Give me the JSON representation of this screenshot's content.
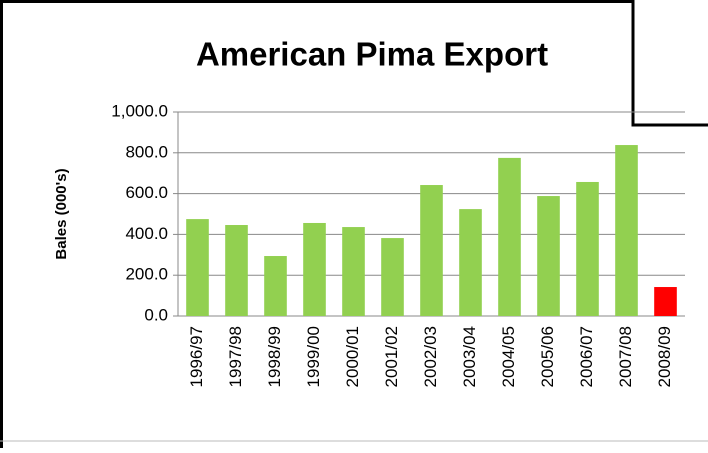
{
  "chart_data": {
    "type": "bar",
    "title": "American Pima Export",
    "y_axis_label": "Bales (000's)",
    "categories": [
      "1996/97",
      "1997/98",
      "1998/99",
      "1999/00",
      "2000/01",
      "2001/02",
      "2002/03",
      "2003/04",
      "2004/05",
      "2005/06",
      "2006/07",
      "2007/08",
      "2008/09"
    ],
    "values": [
      475,
      446,
      294,
      456,
      436,
      382,
      642,
      524,
      775,
      588,
      657,
      838,
      142
    ],
    "colors": [
      "#92d050",
      "#92d050",
      "#92d050",
      "#92d050",
      "#92d050",
      "#92d050",
      "#92d050",
      "#92d050",
      "#92d050",
      "#92d050",
      "#92d050",
      "#92d050",
      "#ff0000"
    ],
    "ylim": [
      0,
      1000
    ],
    "yticks": [
      {
        "value": 0,
        "label": "0.0"
      },
      {
        "value": 200,
        "label": "200.0"
      },
      {
        "value": 400,
        "label": "400.0"
      },
      {
        "value": 600,
        "label": "600.0"
      },
      {
        "value": 800,
        "label": "800.0"
      },
      {
        "value": 1000,
        "label": "1,000.0"
      }
    ],
    "grid": true
  }
}
